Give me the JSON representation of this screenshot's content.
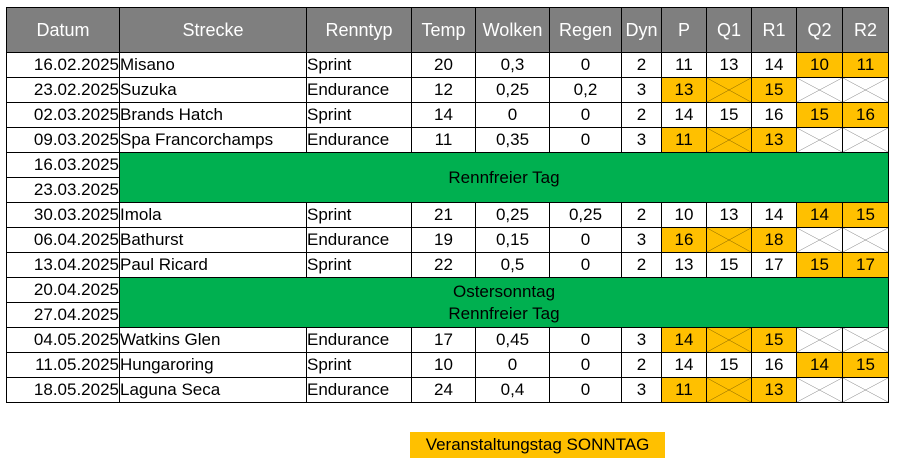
{
  "columns": [
    "Datum",
    "Strecke",
    "Renntyp",
    "Temp",
    "Wolken",
    "Regen",
    "Dyn",
    "P",
    "Q1",
    "R1",
    "Q2",
    "R2"
  ],
  "rows": [
    {
      "type": "race",
      "date": "16.02.2025",
      "track": "Misano",
      "race_type": "Sprint",
      "temp": "20",
      "clouds": "0,3",
      "rain": "0",
      "dyn": "2",
      "p": "11",
      "q1": "13",
      "r1": "14",
      "q2": "10",
      "r2": "11",
      "hl": [
        "q2",
        "r2"
      ],
      "x": []
    },
    {
      "type": "race",
      "date": "23.02.2025",
      "track": "Suzuka",
      "race_type": "Endurance",
      "temp": "12",
      "clouds": "0,25",
      "rain": "0,2",
      "dyn": "3",
      "p": "13",
      "q1": "",
      "r1": "15",
      "q2": "",
      "r2": "",
      "hl": [
        "p",
        "q1",
        "r1"
      ],
      "x": [
        "q1",
        "q2",
        "r2"
      ]
    },
    {
      "type": "race",
      "date": "02.03.2025",
      "track": "Brands Hatch",
      "race_type": "Sprint",
      "temp": "14",
      "clouds": "0",
      "rain": "0",
      "dyn": "2",
      "p": "14",
      "q1": "15",
      "r1": "16",
      "q2": "15",
      "r2": "16",
      "hl": [
        "q2",
        "r2"
      ],
      "x": []
    },
    {
      "type": "race",
      "date": "09.03.2025",
      "track": "Spa Francorchamps",
      "race_type": "Endurance",
      "temp": "11",
      "clouds": "0,35",
      "rain": "0",
      "dyn": "3",
      "p": "11",
      "q1": "",
      "r1": "13",
      "q2": "",
      "r2": "",
      "hl": [
        "p",
        "q1",
        "r1"
      ],
      "x": [
        "q1",
        "q2",
        "r2"
      ]
    },
    {
      "type": "rest",
      "dates": [
        "16.03.2025",
        "23.03.2025"
      ],
      "text": "Rennfreier Tag"
    },
    {
      "type": "race",
      "date": "30.03.2025",
      "track": "Imola",
      "race_type": "Sprint",
      "temp": "21",
      "clouds": "0,25",
      "rain": "0,25",
      "dyn": "2",
      "p": "10",
      "q1": "13",
      "r1": "14",
      "q2": "14",
      "r2": "15",
      "hl": [
        "q2",
        "r2"
      ],
      "x": []
    },
    {
      "type": "race",
      "date": "06.04.2025",
      "track": "Bathurst",
      "race_type": "Endurance",
      "temp": "19",
      "clouds": "0,15",
      "rain": "0",
      "dyn": "3",
      "p": "16",
      "q1": "",
      "r1": "18",
      "q2": "",
      "r2": "",
      "hl": [
        "p",
        "q1",
        "r1"
      ],
      "x": [
        "q1",
        "q2",
        "r2"
      ]
    },
    {
      "type": "race",
      "date": "13.04.2025",
      "track": "Paul Ricard",
      "race_type": "Sprint",
      "temp": "22",
      "clouds": "0,5",
      "rain": "0",
      "dyn": "2",
      "p": "13",
      "q1": "15",
      "r1": "17",
      "q2": "15",
      "r2": "17",
      "hl": [
        "q2",
        "r2"
      ],
      "x": []
    },
    {
      "type": "rest",
      "dates": [
        "20.04.2025",
        "27.04.2025"
      ],
      "text": "Ostersonntag\nRennfreier Tag"
    },
    {
      "type": "race",
      "date": "04.05.2025",
      "track": "Watkins Glen",
      "race_type": "Endurance",
      "temp": "17",
      "clouds": "0,45",
      "rain": "0",
      "dyn": "3",
      "p": "14",
      "q1": "",
      "r1": "15",
      "q2": "",
      "r2": "",
      "hl": [
        "p",
        "q1",
        "r1"
      ],
      "x": [
        "q1",
        "q2",
        "r2"
      ]
    },
    {
      "type": "race",
      "date": "11.05.2025",
      "track": "Hungaroring",
      "race_type": "Sprint",
      "temp": "10",
      "clouds": "0",
      "rain": "0",
      "dyn": "2",
      "p": "14",
      "q1": "15",
      "r1": "16",
      "q2": "14",
      "r2": "15",
      "hl": [
        "q2",
        "r2"
      ],
      "x": []
    },
    {
      "type": "race",
      "date": "18.05.2025",
      "track": "Laguna Seca",
      "race_type": "Endurance",
      "temp": "24",
      "clouds": "0,4",
      "rain": "0",
      "dyn": "3",
      "p": "11",
      "q1": "",
      "r1": "13",
      "q2": "",
      "r2": "",
      "hl": [
        "p",
        "q1",
        "r1"
      ],
      "x": [
        "q1",
        "q2",
        "r2"
      ]
    }
  ],
  "footer_label": "Veranstaltungstag SONNTAG",
  "colors": {
    "header": "#7f7f7f",
    "highlight": "#ffc000",
    "rest": "#00b050"
  }
}
